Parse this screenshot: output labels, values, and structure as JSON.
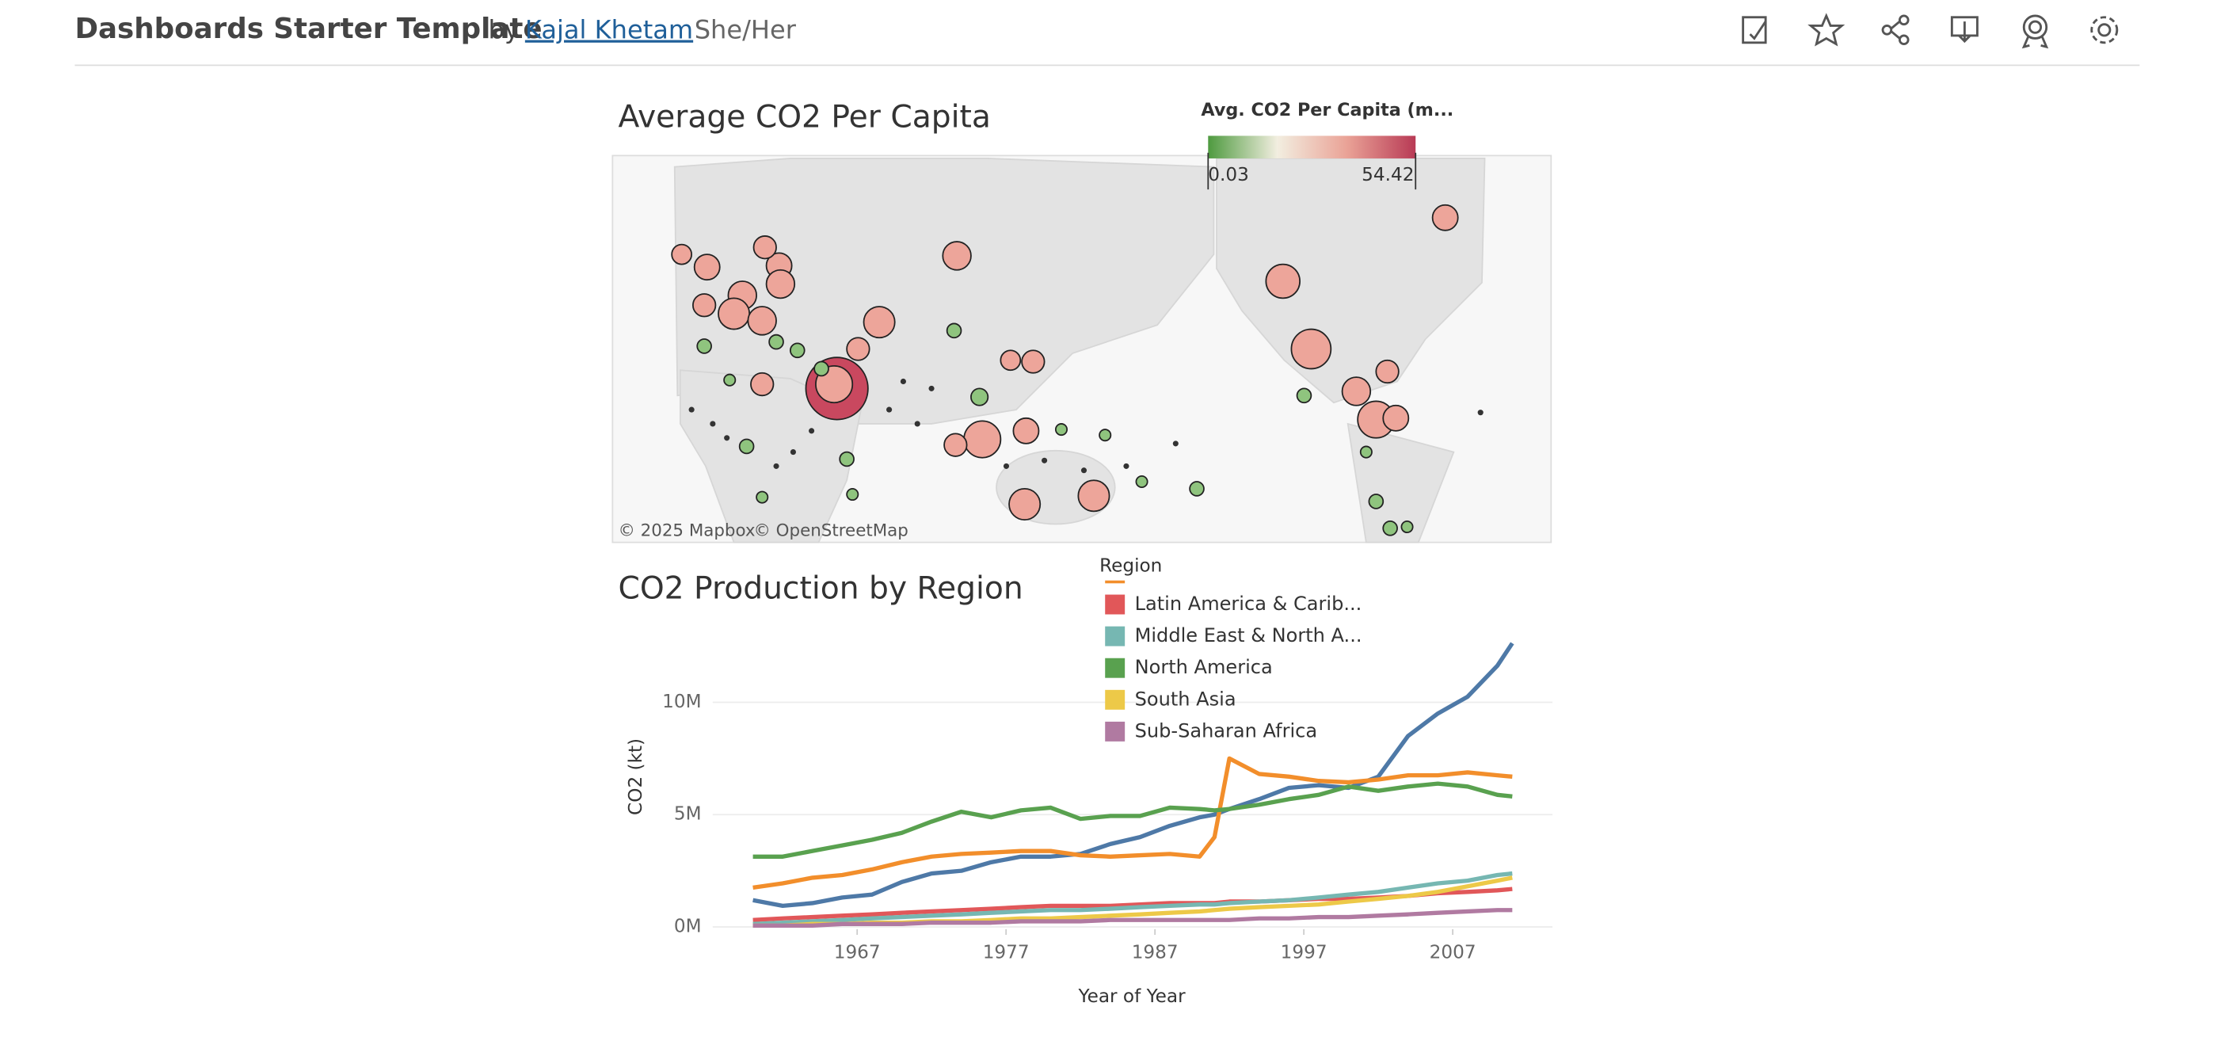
{
  "header": {
    "title": "Dashboards Starter Template",
    "by": "by",
    "author": "Kajal Khetam",
    "pronouns": "She/Her"
  },
  "chart_data": [
    {
      "type": "map",
      "title": "Average CO2 Per Capita",
      "legend_title": "Avg. CO2 Per Capita (m...",
      "colorscale": {
        "colors": [
          "#4e9a3f",
          "#f2eee0",
          "#eaa397",
          "#b83a55"
        ],
        "ticks": [
          0.03,
          54.42
        ]
      },
      "attribution": [
        "© 2025 Mapbox",
        "© OpenStreetMap"
      ]
    },
    {
      "type": "line",
      "title": "CO2 Production by Region",
      "x_label": "Year of Year",
      "y_label": "CO2 (kt)",
      "legend_title": "Region",
      "x": [
        1960,
        1962,
        1964,
        1966,
        1968,
        1970,
        1972,
        1974,
        1976,
        1978,
        1980,
        1982,
        1984,
        1986,
        1988,
        1990,
        1991,
        1992,
        1994,
        1996,
        1998,
        2000,
        2002,
        2004,
        2006,
        2008,
        2010,
        2011
      ],
      "xlim": [
        1957.3,
        2013.7
      ],
      "xticks": [
        1967,
        1977,
        1987,
        1997,
        2007
      ],
      "ylim": [
        -100000.0,
        13600000.0
      ],
      "yticks": [
        {
          "value": 0,
          "label": "0M"
        },
        {
          "value": 5000000.0,
          "label": "5M"
        },
        {
          "value": 10000000.0,
          "label": "10M"
        }
      ],
      "grid": true,
      "series": [
        {
          "color": "#4e79a7",
          "values": [
            1190000.0,
            940000.0,
            1060000.0,
            1310000.0,
            1440000.0,
            2000000.0,
            2380000.0,
            2500000.0,
            2880000.0,
            3130000.0,
            3130000.0,
            3250000.0,
            3690000.0,
            4000000.0,
            4500000.0,
            4880000.0,
            5000000.0,
            5250000.0,
            5690000.0,
            6190000.0,
            6310000.0,
            6190000.0,
            6690000.0,
            8500000.0,
            9500000.0,
            10250000.0,
            11630000.0,
            12630000.0
          ]
        },
        {
          "color": "#f28e2b",
          "values": [
            1750000.0,
            1940000.0,
            2190000.0,
            2310000.0,
            2560000.0,
            2880000.0,
            3130000.0,
            3250000.0,
            3310000.0,
            3380000.0,
            3380000.0,
            3190000.0,
            3130000.0,
            3190000.0,
            3250000.0,
            3130000.0,
            4000000.0,
            7500000.0,
            6810000.0,
            6690000.0,
            6500000.0,
            6440000.0,
            6560000.0,
            6750000.0,
            6750000.0,
            6880000.0,
            6750000.0,
            6690000.0
          ]
        },
        {
          "name": "Latin America & Carib...",
          "color": "#e15759",
          "values": [
            310000.0,
            380000.0,
            440000.0,
            500000.0,
            560000.0,
            630000.0,
            690000.0,
            750000.0,
            810000.0,
            880000.0,
            940000.0,
            940000.0,
            940000.0,
            1000000.0,
            1060000.0,
            1060000.0,
            1060000.0,
            1130000.0,
            1130000.0,
            1190000.0,
            1250000.0,
            1250000.0,
            1310000.0,
            1380000.0,
            1500000.0,
            1560000.0,
            1630000.0,
            1690000.0
          ]
        },
        {
          "name": "Middle East & North A...",
          "color": "#76b7b2",
          "values": [
            130000.0,
            190000.0,
            250000.0,
            310000.0,
            380000.0,
            440000.0,
            500000.0,
            560000.0,
            630000.0,
            690000.0,
            750000.0,
            750000.0,
            810000.0,
            880000.0,
            940000.0,
            1000000.0,
            1000000.0,
            1060000.0,
            1130000.0,
            1190000.0,
            1310000.0,
            1440000.0,
            1560000.0,
            1750000.0,
            1940000.0,
            2060000.0,
            2310000.0,
            2380000.0
          ]
        },
        {
          "name": "North America",
          "color": "#59a14f",
          "values": [
            3130000.0,
            3130000.0,
            3380000.0,
            3630000.0,
            3880000.0,
            4190000.0,
            4690000.0,
            5130000.0,
            4880000.0,
            5190000.0,
            5310000.0,
            4810000.0,
            4940000.0,
            4940000.0,
            5310000.0,
            5250000.0,
            5190000.0,
            5250000.0,
            5440000.0,
            5690000.0,
            5880000.0,
            6250000.0,
            6060000.0,
            6250000.0,
            6380000.0,
            6250000.0,
            5880000.0,
            5810000.0
          ]
        },
        {
          "name": "South Asia",
          "color": "#edc948",
          "values": [
            60000.0,
            60000.0,
            130000.0,
            130000.0,
            190000.0,
            190000.0,
            250000.0,
            250000.0,
            310000.0,
            380000.0,
            380000.0,
            440000.0,
            500000.0,
            560000.0,
            630000.0,
            690000.0,
            750000.0,
            810000.0,
            880000.0,
            940000.0,
            1000000.0,
            1130000.0,
            1250000.0,
            1380000.0,
            1560000.0,
            1810000.0,
            2060000.0,
            2190000.0
          ]
        },
        {
          "name": "Sub-Saharan Africa",
          "color": "#b07aa1",
          "values": [
            60000.0,
            60000.0,
            60000.0,
            130000.0,
            130000.0,
            130000.0,
            190000.0,
            190000.0,
            190000.0,
            250000.0,
            250000.0,
            250000.0,
            310000.0,
            310000.0,
            310000.0,
            310000.0,
            310000.0,
            310000.0,
            380000.0,
            380000.0,
            440000.0,
            440000.0,
            500000.0,
            560000.0,
            630000.0,
            690000.0,
            750000.0,
            750000.0
          ]
        }
      ]
    }
  ]
}
